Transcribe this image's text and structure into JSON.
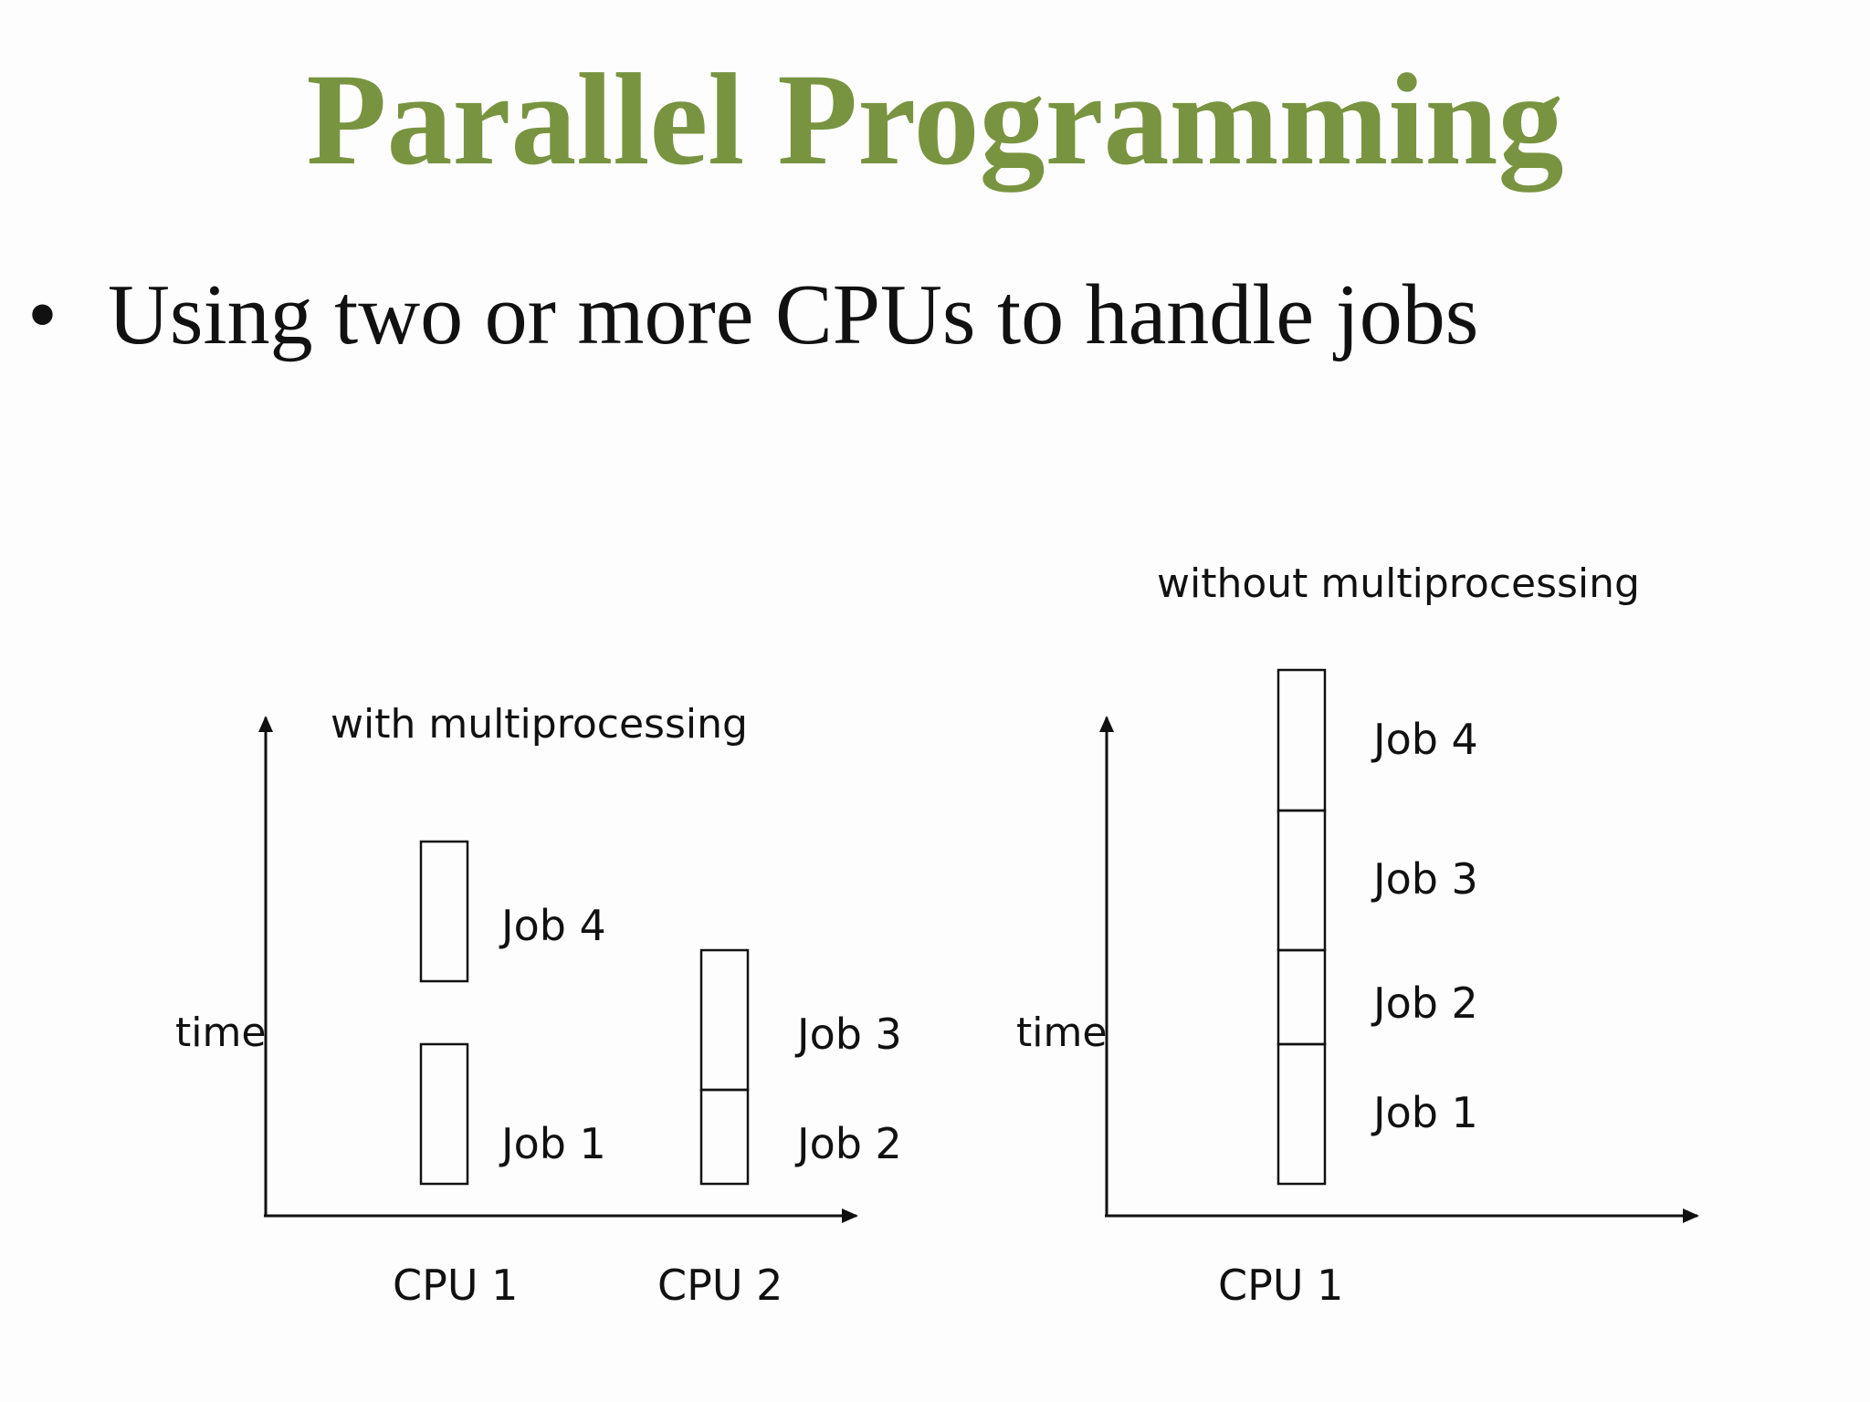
{
  "slide": {
    "title": "Parallel Programming",
    "bullet": "Using two or more CPUs to handle jobs",
    "title_color": "#789440"
  },
  "diagram_left": {
    "caption": "with multiprocessing",
    "y_axis_label": "time",
    "cpu_labels": [
      "CPU 1",
      "CPU 2"
    ],
    "jobs": {
      "cpu1_upper": "Job 4",
      "cpu1_lower": "Job 1",
      "cpu2_upper": "Job 3",
      "cpu2_lower": "Job 2"
    }
  },
  "diagram_right": {
    "caption": "without multiprocessing",
    "y_axis_label": "time",
    "cpu_labels": [
      "CPU 1"
    ],
    "jobs": [
      "Job 4",
      "Job 3",
      "Job 2",
      "Job 1"
    ]
  }
}
